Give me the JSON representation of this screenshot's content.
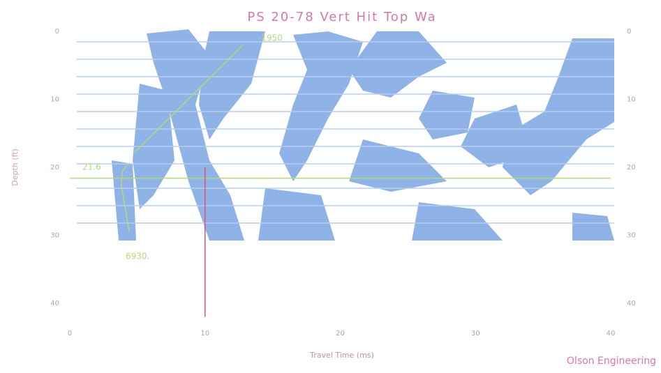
{
  "chart_data": {
    "type": "seismic",
    "title": "PS 20-78 Vert Hit Top Wa",
    "x_label": "Travel Time (ms)",
    "y_label": "Depth (ft)",
    "credit": "Olson Engineering",
    "annotations": [
      "-1950",
      "21.6",
      "6930."
    ],
    "xlim": [
      0,
      42
    ],
    "xticks": [
      0,
      10,
      20,
      30,
      40
    ],
    "ylim": [
      0,
      42
    ],
    "yticks": [
      0,
      10,
      20,
      30,
      40
    ],
    "overlays": [
      {
        "color": "#b6d77a",
        "x": [
          4.8,
          12.8
        ],
        "y": [
          17.8,
          2
        ]
      },
      {
        "color": "#b6d77a",
        "x": [
          0,
          40
        ],
        "y": [
          21.6,
          21.6
        ]
      },
      {
        "color": "#b6d77a",
        "x": [
          4.3,
          3.9,
          3.8,
          4.1,
          4.4
        ],
        "y": [
          19.5,
          20.5,
          22.5,
          26,
          29.5
        ]
      },
      {
        "color": "#e0507a",
        "x": [
          10,
          10
        ],
        "y": [
          20,
          42
        ]
      }
    ]
  }
}
